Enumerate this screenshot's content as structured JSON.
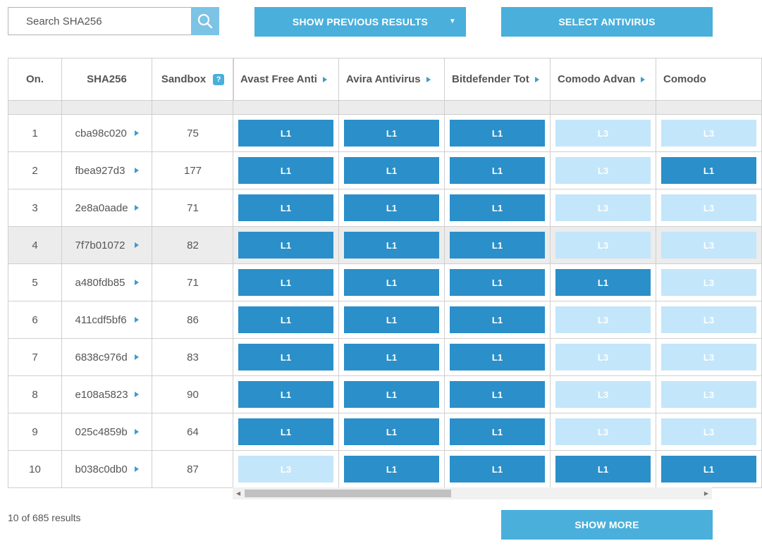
{
  "search": {
    "placeholder": "Search SHA256"
  },
  "buttons": {
    "previous": "SHOW PREVIOUS RESULTS",
    "select": "SELECT ANTIVIRUS",
    "more": "SHOW MORE"
  },
  "columns": {
    "on": "On.",
    "sha": "SHA256",
    "sandbox": "Sandbox",
    "help": "?"
  },
  "antiviruses": [
    "Avast Free Anti",
    "Avira Antivirus",
    "Bitdefender Tot",
    "Comodo Advan",
    "Comodo"
  ],
  "rows": [
    {
      "n": "1",
      "sha": "cba98c020",
      "sandbox": "75",
      "levels": [
        "L1",
        "L1",
        "L1",
        "L3",
        "L3"
      ]
    },
    {
      "n": "2",
      "sha": "fbea927d3",
      "sandbox": "177",
      "levels": [
        "L1",
        "L1",
        "L1",
        "L3",
        "L1"
      ]
    },
    {
      "n": "3",
      "sha": "2e8a0aade",
      "sandbox": "71",
      "levels": [
        "L1",
        "L1",
        "L1",
        "L3",
        "L3"
      ]
    },
    {
      "n": "4",
      "sha": "7f7b01072",
      "sandbox": "82",
      "levels": [
        "L1",
        "L1",
        "L1",
        "L3",
        "L3"
      ],
      "highlighted": true
    },
    {
      "n": "5",
      "sha": "a480fdb85",
      "sandbox": "71",
      "levels": [
        "L1",
        "L1",
        "L1",
        "L1",
        "L3"
      ]
    },
    {
      "n": "6",
      "sha": "411cdf5bf6",
      "sandbox": "86",
      "levels": [
        "L1",
        "L1",
        "L1",
        "L3",
        "L3"
      ]
    },
    {
      "n": "7",
      "sha": "6838c976d",
      "sandbox": "83",
      "levels": [
        "L1",
        "L1",
        "L1",
        "L3",
        "L3"
      ]
    },
    {
      "n": "8",
      "sha": "e108a5823",
      "sandbox": "90",
      "levels": [
        "L1",
        "L1",
        "L1",
        "L3",
        "L3"
      ]
    },
    {
      "n": "9",
      "sha": "025c4859b",
      "sandbox": "64",
      "levels": [
        "L1",
        "L1",
        "L1",
        "L3",
        "L3"
      ]
    },
    {
      "n": "10",
      "sha": "b038c0db0",
      "sandbox": "87",
      "levels": [
        "L3",
        "L1",
        "L1",
        "L1",
        "L1"
      ]
    }
  ],
  "footer": {
    "results": "10 of 685 results"
  },
  "colors": {
    "accent": "#4aafdb",
    "level_L1": "#2b8fc9",
    "level_L3": "#c3e6fa"
  }
}
